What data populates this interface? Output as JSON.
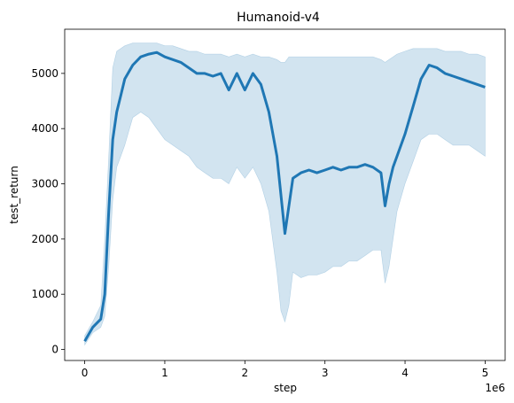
{
  "chart_data": {
    "type": "line",
    "title": "Humanoid-v4",
    "xlabel": "step",
    "ylabel": "test_return",
    "x_offset_label": "1e6",
    "xlim": [
      -250000,
      5250000
    ],
    "ylim": [
      -200,
      5800
    ],
    "x_ticks": [
      0,
      1000000,
      2000000,
      3000000,
      4000000,
      5000000
    ],
    "x_tick_labels": [
      "0",
      "1",
      "2",
      "3",
      "4",
      "5"
    ],
    "y_ticks": [
      0,
      1000,
      2000,
      3000,
      4000,
      5000
    ],
    "y_tick_labels": [
      "0",
      "1000",
      "2000",
      "3000",
      "4000",
      "5000"
    ],
    "grid": false,
    "legend": "none",
    "colors": {
      "line": "#1f77b4",
      "band": "#1f77b4"
    },
    "series": [
      {
        "x": [
          0,
          100000,
          200000,
          250000,
          300000,
          350000,
          400000,
          450000,
          500000,
          600000,
          700000,
          800000,
          900000,
          1000000,
          1100000,
          1200000,
          1300000,
          1400000,
          1500000,
          1600000,
          1700000,
          1800000,
          1900000,
          2000000,
          2100000,
          2200000,
          2300000,
          2400000,
          2450000,
          2500000,
          2550000,
          2600000,
          2700000,
          2800000,
          2900000,
          3000000,
          3100000,
          3200000,
          3300000,
          3400000,
          3500000,
          3600000,
          3700000,
          3750000,
          3800000,
          3850000,
          3900000,
          4000000,
          4100000,
          4200000,
          4300000,
          4400000,
          4500000,
          4600000,
          4700000,
          4800000,
          4900000,
          5000000
        ],
        "values": [
          150,
          400,
          550,
          1000,
          2500,
          3800,
          4300,
          4600,
          4900,
          5150,
          5300,
          5350,
          5380,
          5300,
          5250,
          5200,
          5100,
          5000,
          5000,
          4950,
          5000,
          4700,
          5000,
          4700,
          5000,
          4800,
          4300,
          3500,
          2800,
          2100,
          2600,
          3100,
          3200,
          3250,
          3200,
          3250,
          3300,
          3250,
          3300,
          3300,
          3350,
          3300,
          3200,
          2600,
          3000,
          3300,
          3500,
          3900,
          4400,
          4900,
          5150,
          5100,
          5000,
          4950,
          4900,
          4850,
          4800,
          4750
        ],
        "upper": [
          250,
          500,
          800,
          2000,
          3500,
          5100,
          5400,
          5450,
          5500,
          5550,
          5550,
          5550,
          5550,
          5500,
          5500,
          5450,
          5400,
          5400,
          5350,
          5350,
          5350,
          5300,
          5350,
          5300,
          5350,
          5300,
          5300,
          5250,
          5200,
          5200,
          5300,
          5300,
          5300,
          5300,
          5300,
          5300,
          5300,
          5300,
          5300,
          5300,
          5300,
          5300,
          5250,
          5200,
          5250,
          5300,
          5350,
          5400,
          5450,
          5450,
          5450,
          5450,
          5400,
          5400,
          5400,
          5350,
          5350,
          5300
        ],
        "lower": [
          80,
          300,
          400,
          600,
          1500,
          2700,
          3300,
          3500,
          3700,
          4200,
          4300,
          4200,
          4000,
          3800,
          3700,
          3600,
          3500,
          3300,
          3200,
          3100,
          3100,
          3000,
          3300,
          3100,
          3300,
          3000,
          2500,
          1400,
          700,
          500,
          800,
          1400,
          1300,
          1350,
          1350,
          1400,
          1500,
          1500,
          1600,
          1600,
          1700,
          1800,
          1800,
          1200,
          1500,
          2000,
          2500,
          3000,
          3400,
          3800,
          3900,
          3900,
          3800,
          3700,
          3700,
          3700,
          3600,
          3500
        ]
      }
    ]
  }
}
